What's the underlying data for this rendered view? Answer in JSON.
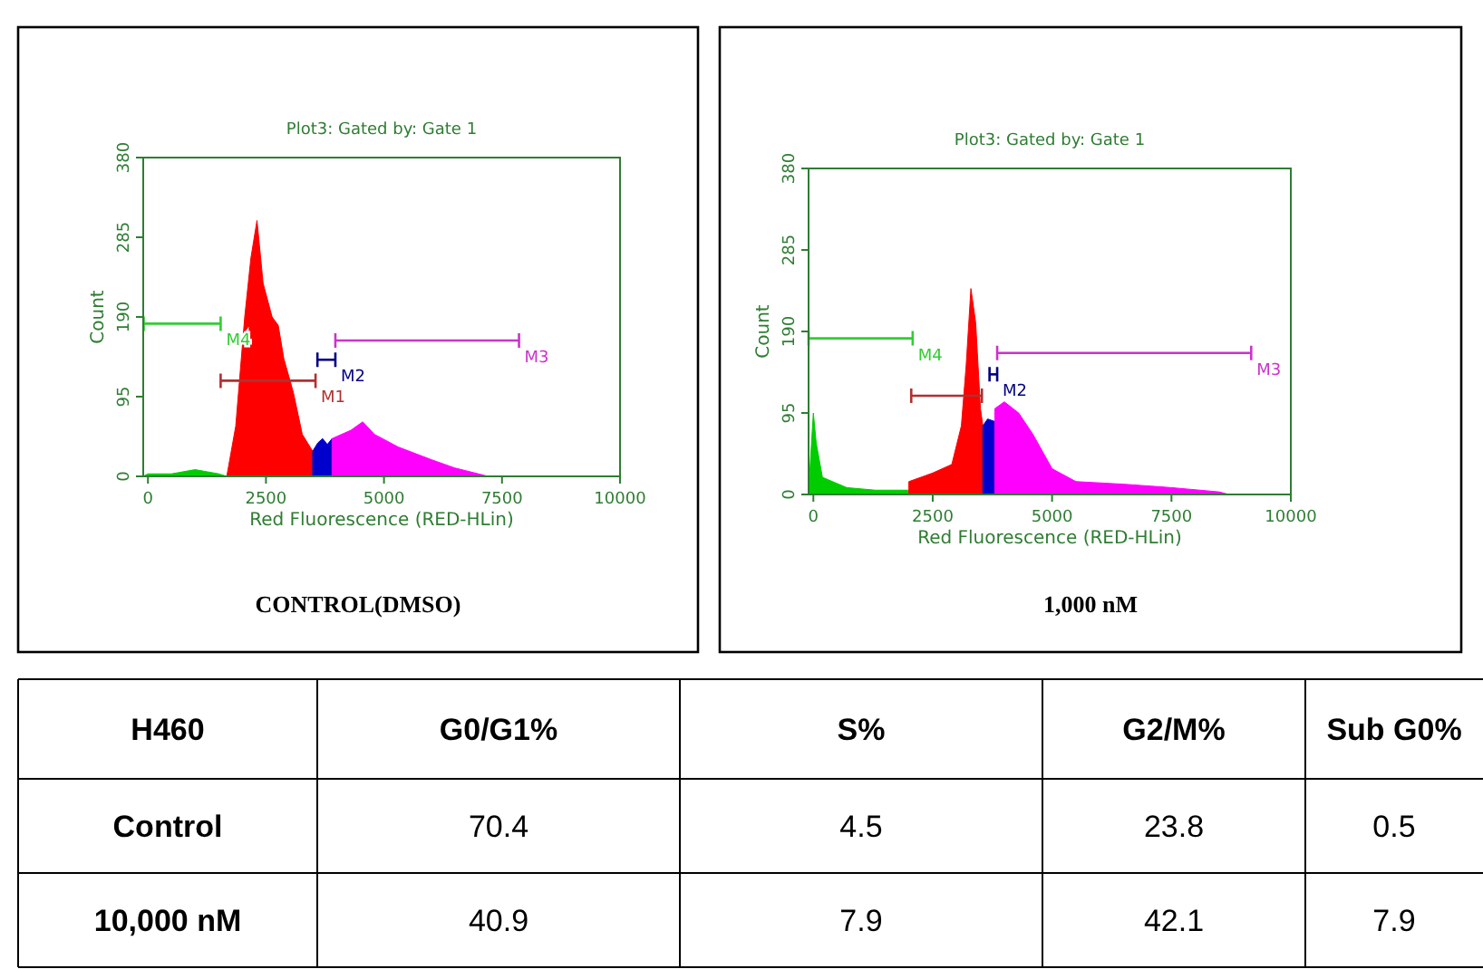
{
  "chart_data": [
    {
      "type": "area",
      "title": "Plot3:  Gated by: Gate 1",
      "xlabel": "Red Fluorescence (RED-HLin)",
      "ylabel": "Count",
      "annotations": [
        "CONTROL(DMSO)"
      ],
      "xlim": [
        -100,
        10000
      ],
      "ylim": [
        0,
        380
      ],
      "xticks": [
        0,
        2500,
        5000,
        7500,
        10000
      ],
      "yticks": [
        0,
        95,
        190,
        285,
        380
      ],
      "grid": false,
      "legend": "bottom left",
      "series": [
        {
          "type": "area",
          "color": "#00cc00",
          "x": [
            -100,
            0,
            500,
            1000,
            1200,
            1500,
            1670
          ],
          "values": [
            0,
            3,
            3,
            8,
            6,
            3,
            0
          ]
        },
        {
          "type": "area",
          "color": "#ff0000",
          "x": [
            1670,
            1860,
            2050,
            2180,
            2310,
            2440,
            2630,
            2760,
            2880,
            3080,
            3270,
            3490
          ],
          "values": [
            0,
            60,
            190,
            260,
            305,
            230,
            190,
            180,
            140,
            100,
            50,
            30
          ]
        },
        {
          "type": "area",
          "color": "#0000cc",
          "x": [
            3490,
            3600,
            3700,
            3800,
            3900
          ],
          "values": [
            30,
            40,
            45,
            38,
            45
          ]
        },
        {
          "type": "area",
          "color": "#ff00ff",
          "x": [
            3900,
            4300,
            4550,
            4800,
            5300,
            6000,
            6500,
            7000,
            7200
          ],
          "values": [
            45,
            55,
            65,
            50,
            35,
            20,
            10,
            3,
            0
          ]
        },
        {
          "type": "line",
          "name": "M4",
          "color": "#33cc33",
          "x": [
            -90,
            1540
          ],
          "values": [
            182,
            182
          ]
        },
        {
          "type": "line",
          "name": "M1",
          "color": "#b03030",
          "x": [
            1540,
            3550
          ],
          "values": [
            114,
            114
          ]
        },
        {
          "type": "line",
          "name": "M2",
          "color": "#000080",
          "x": [
            3590,
            3970
          ],
          "values": [
            139,
            139
          ]
        },
        {
          "type": "line",
          "name": "M3",
          "color": "#cc33cc",
          "x": [
            3970,
            7860
          ],
          "values": [
            162,
            162
          ]
        }
      ]
    },
    {
      "type": "area",
      "title": "Plot3:  Gated by: Gate 1",
      "xlabel": "Red Fluorescence (RED-HLin)",
      "ylabel": "Count",
      "annotations": [
        "1,000 nM"
      ],
      "xlim": [
        -100,
        10000
      ],
      "ylim": [
        0,
        380
      ],
      "xticks": [
        0,
        2500,
        5000,
        7500,
        10000
      ],
      "yticks": [
        0,
        95,
        190,
        285,
        380
      ],
      "grid": false,
      "legend": "bottom left",
      "series": [
        {
          "type": "area",
          "color": "#00cc00",
          "x": [
            -100,
            -60,
            0,
            60,
            190,
            700,
            1300,
            2000
          ],
          "values": [
            0,
            40,
            95,
            60,
            20,
            8,
            5,
            5
          ]
        },
        {
          "type": "area",
          "color": "#ff0000",
          "x": [
            2000,
            2500,
            2900,
            3100,
            3200,
            3300,
            3400,
            3500,
            3550
          ],
          "values": [
            15,
            25,
            35,
            80,
            150,
            240,
            200,
            100,
            80
          ]
        },
        {
          "type": "area",
          "color": "#0000cc",
          "x": [
            3550,
            3650,
            3800
          ],
          "values": [
            80,
            88,
            85
          ]
        },
        {
          "type": "area",
          "color": "#ff00ff",
          "x": [
            3800,
            4000,
            4300,
            4600,
            5000,
            5500,
            6500,
            7500,
            8500,
            8700
          ],
          "values": [
            100,
            108,
            95,
            70,
            30,
            15,
            12,
            8,
            3,
            0
          ]
        },
        {
          "type": "line",
          "name": "M4",
          "color": "#33cc33",
          "x": [
            -100,
            2080
          ],
          "values": [
            182,
            182
          ]
        },
        {
          "type": "line",
          "color": "#b03030",
          "x": [
            2050,
            3530
          ],
          "values": [
            115,
            115
          ]
        },
        {
          "type": "line",
          "name": "M2",
          "color": "#000080",
          "x": [
            3690,
            3850
          ],
          "values": [
            140,
            140
          ]
        },
        {
          "type": "line",
          "name": "M3",
          "color": "#cc33cc",
          "x": [
            3850,
            9170
          ],
          "values": [
            165,
            165
          ]
        }
      ]
    },
    {
      "type": "heatmap",
      "title": "H460",
      "categories": [
        "G0/G1%",
        "S%",
        "G2/M%",
        "Sub G0%"
      ],
      "y_categories": [
        "Control",
        "10,000 nM"
      ],
      "cells": [
        [
          70.4,
          4.5,
          23.8,
          0.5
        ],
        [
          40.9,
          7.9,
          42.1,
          7.9
        ]
      ],
      "data_labels": true
    }
  ]
}
